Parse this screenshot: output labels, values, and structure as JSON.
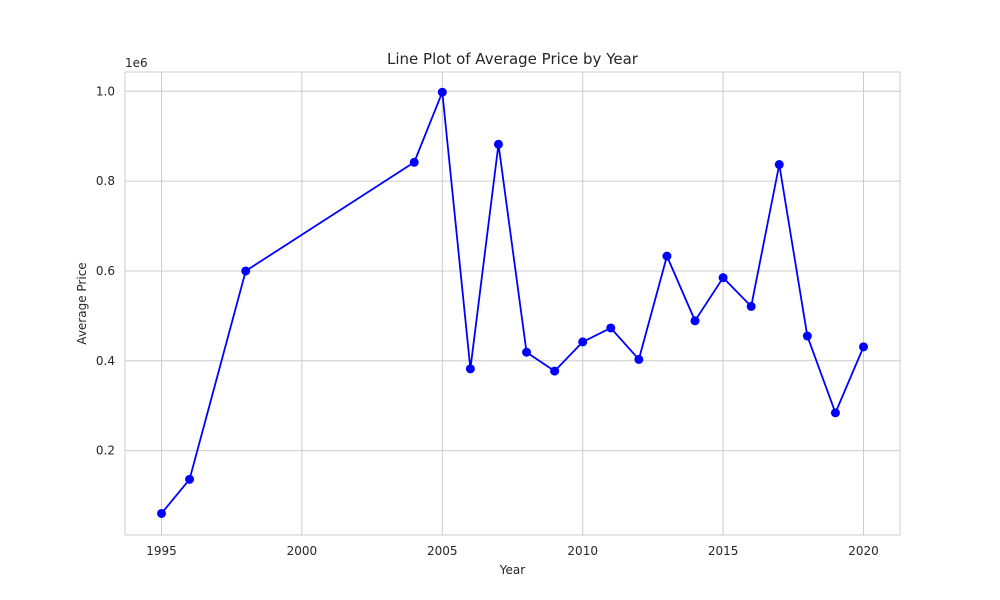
{
  "chart_data": {
    "type": "line",
    "title": "Line Plot of Average Price by Year",
    "xlabel": "Year",
    "ylabel": "Average Price",
    "y_offset_label": "1e6",
    "xlim": [
      1993.7,
      2021.3
    ],
    "ylim": [
      0.012,
      1.043
    ],
    "x_ticks": [
      1995,
      2000,
      2005,
      2010,
      2015,
      2020
    ],
    "y_ticks": [
      0.2,
      0.4,
      0.6,
      0.8,
      1.0
    ],
    "x_tick_labels": [
      "1995",
      "2000",
      "2005",
      "2010",
      "2015",
      "2020"
    ],
    "y_tick_labels": [
      "0.2",
      "0.4",
      "0.6",
      "0.8",
      "1.0"
    ],
    "grid": true,
    "series": [
      {
        "color": "#0000ff",
        "marker": "circle",
        "x": [
          1995,
          1996,
          1998,
          2004,
          2005,
          2006,
          2007,
          2008,
          2009,
          2010,
          2011,
          2012,
          2013,
          2014,
          2015,
          2016,
          2017,
          2018,
          2019,
          2020
        ],
        "y": [
          0.06,
          0.136,
          0.6,
          0.842,
          0.998,
          0.382,
          0.882,
          0.419,
          0.377,
          0.442,
          0.473,
          0.403,
          0.633,
          0.489,
          0.585,
          0.521,
          0.837,
          0.455,
          0.284,
          0.431
        ]
      }
    ]
  }
}
